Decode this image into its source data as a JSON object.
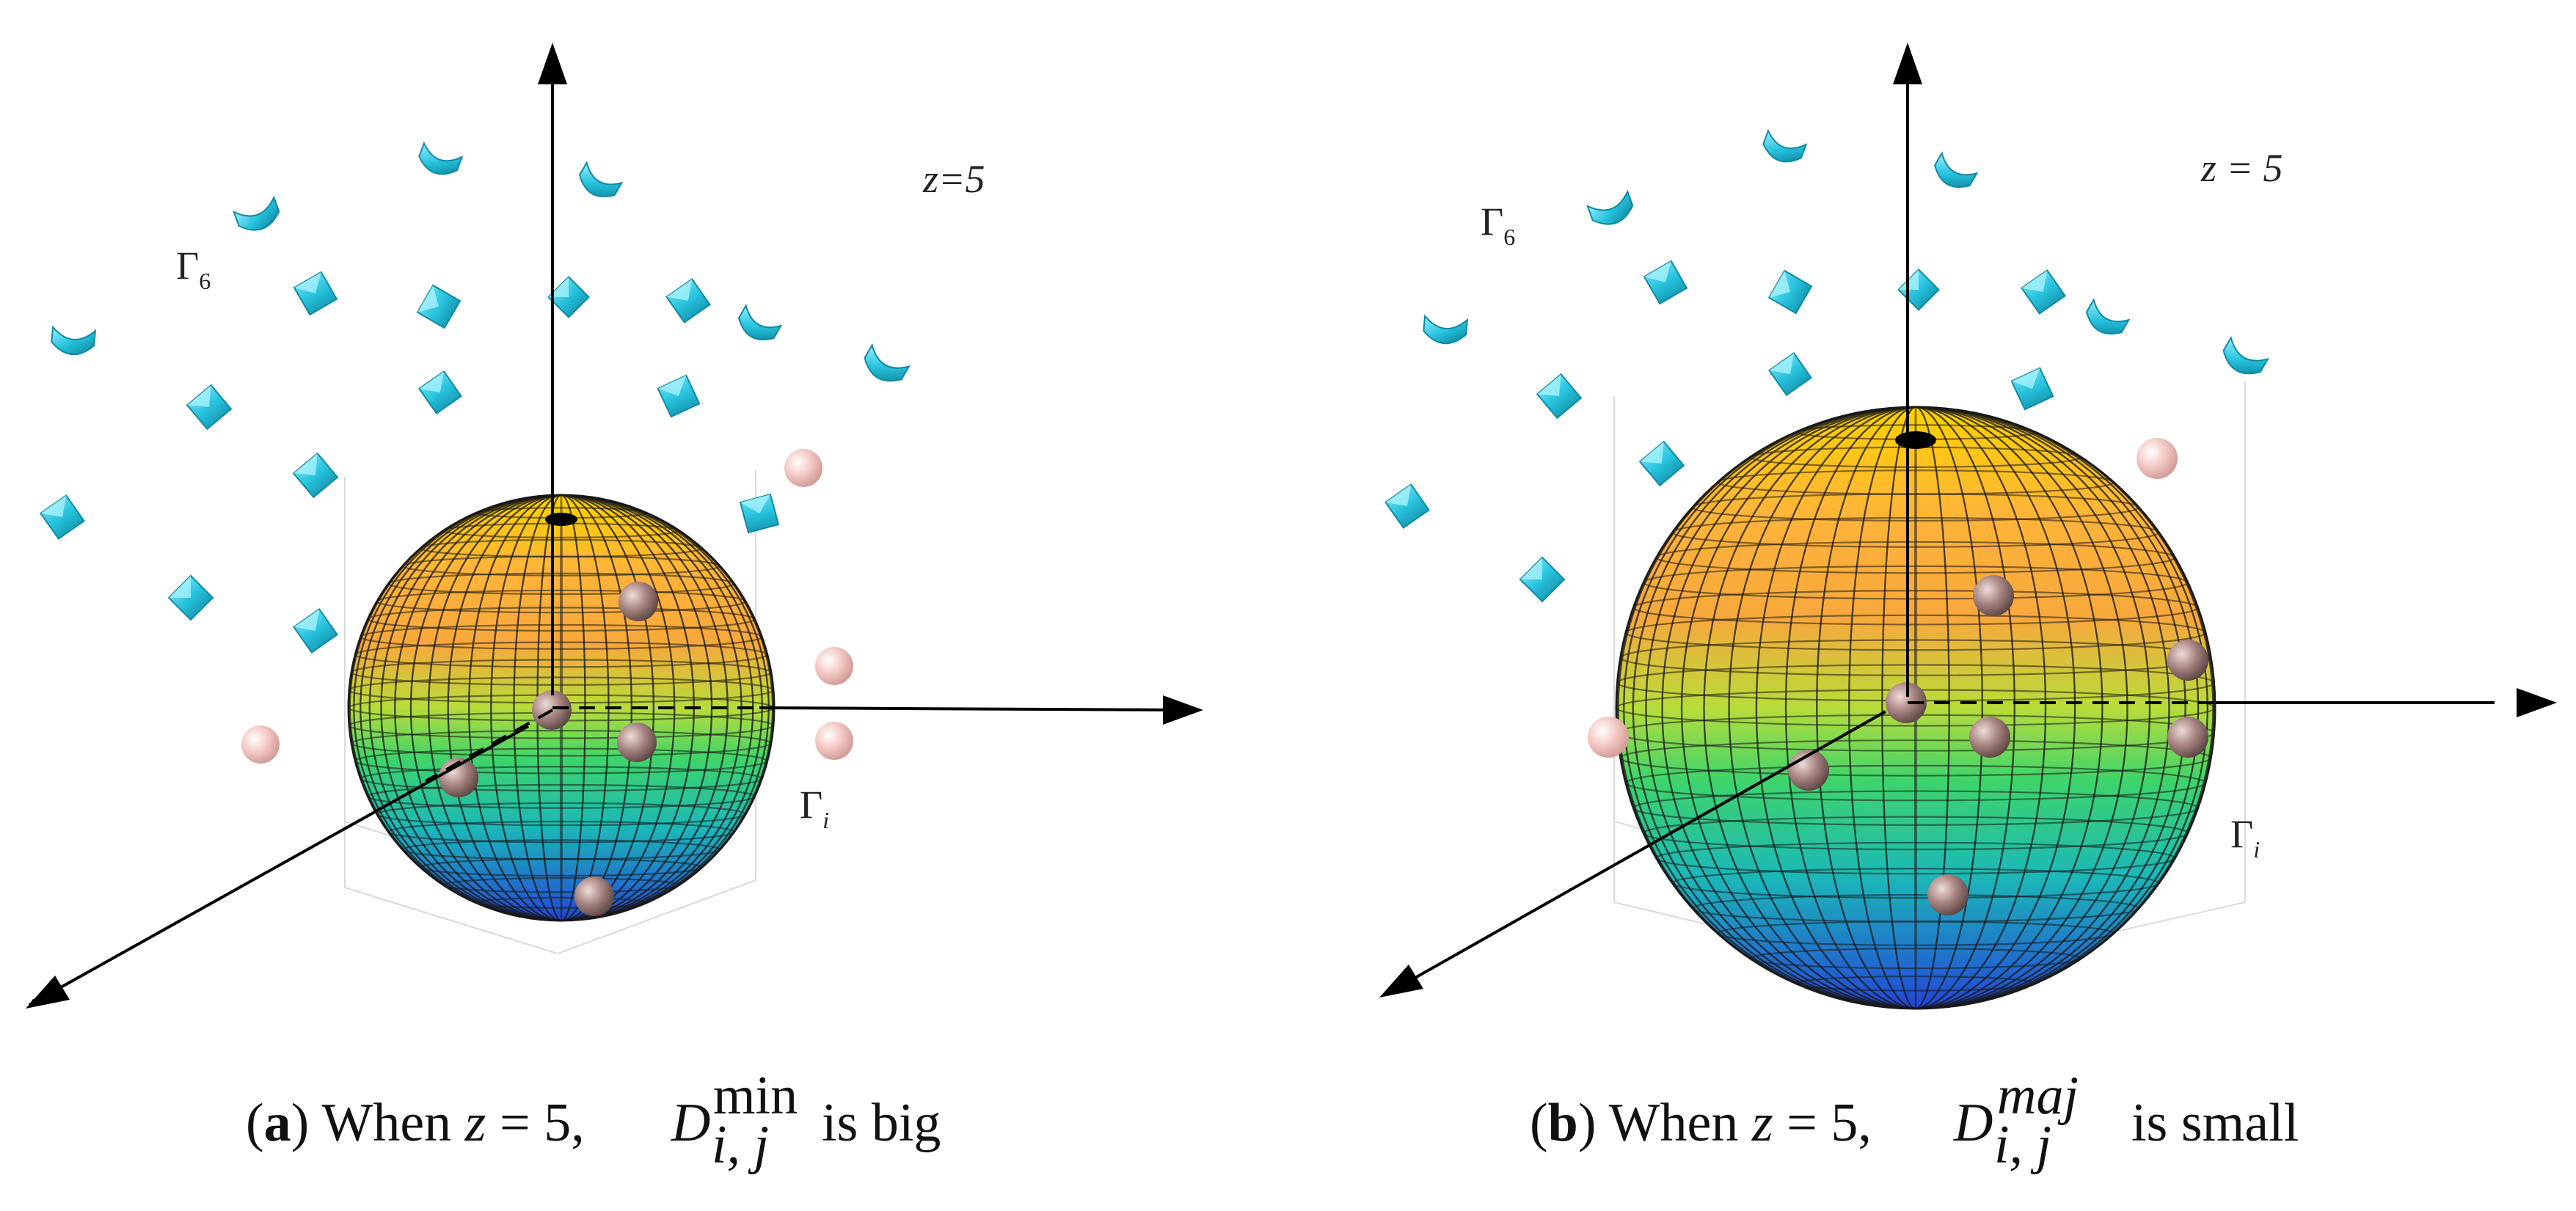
{
  "panels": [
    {
      "id": "a",
      "z_label": "z=5",
      "gamma6_label": "Γ",
      "gamma6_sub": "6",
      "gammai_label": "Γ",
      "gammai_sub": "i",
      "caption": {
        "letter": "a",
        "text": "When",
        "var": "z",
        "eq": "= 5,",
        "D": "D",
        "sup": "min",
        "sub": "i, j",
        "tail": "is big"
      }
    },
    {
      "id": "b",
      "z_label": "z = 5",
      "gamma6_label": "Γ",
      "gamma6_sub": "6",
      "gammai_label": "Γ",
      "gammai_sub": "i",
      "caption": {
        "letter": "b",
        "text": "When",
        "var": "z",
        "eq": "= 5,",
        "D": "D",
        "sup": "maj",
        "sub": "i, j",
        "tail": "is small"
      }
    }
  ],
  "colors": {
    "cube": "#2ec4de",
    "cube_dark": "#0f6c80",
    "pink_sphere": "#f2c4c0",
    "brown_sphere": "#9b7b78",
    "axis": "#000000"
  }
}
